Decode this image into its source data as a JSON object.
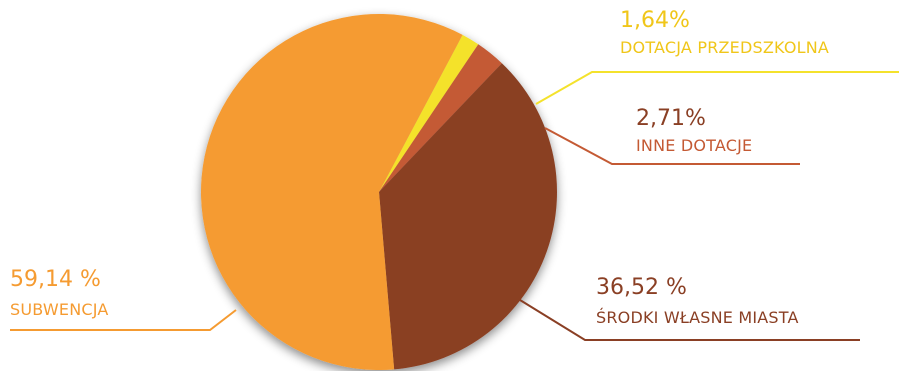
{
  "chart_data": {
    "type": "pie",
    "title": "",
    "start_angle_deg": 0,
    "slices": [
      {
        "name": "DOTACJA PRZEDSZKOLNA",
        "value": 1.64,
        "value_label": "1,64%",
        "color": "#f4e22c"
      },
      {
        "name": "INNE DOTACJE",
        "value": 2.71,
        "value_label": "2,71%",
        "color": "#c45a34"
      },
      {
        "name": "ŚRODKI WŁASNE MIASTA",
        "value": 36.52,
        "value_label": "36,52 %",
        "color": "#8a3f24"
      },
      {
        "name": "SUBWENCJA",
        "value": 59.14,
        "value_label": "59,14 %",
        "color": "#f59b31"
      }
    ]
  }
}
